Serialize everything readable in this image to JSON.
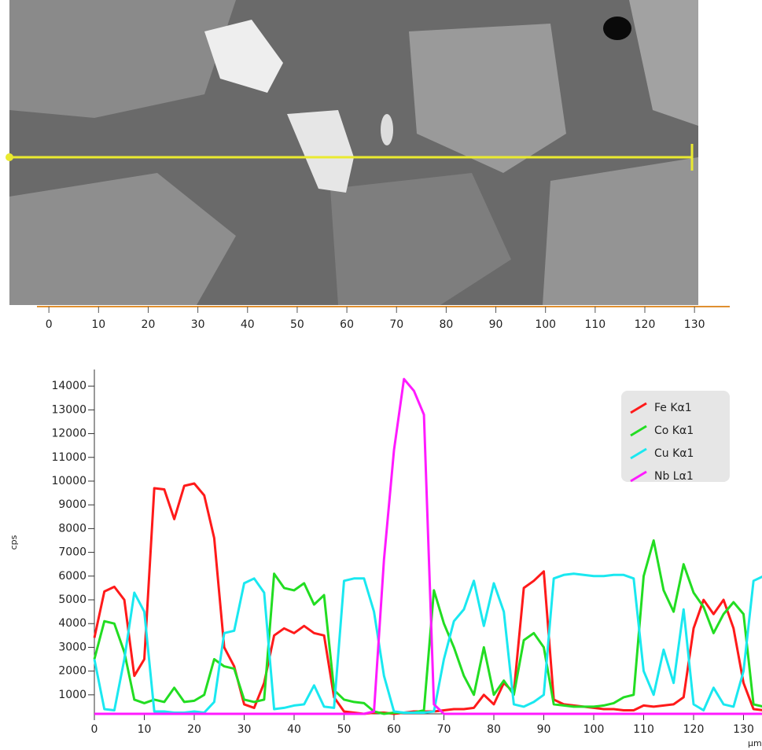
{
  "image_ruler": {
    "xlim": [
      -2.4,
      137.1
    ],
    "xticks": [
      0,
      10,
      20,
      30,
      40,
      50,
      60,
      70,
      80,
      90,
      100,
      110,
      120,
      130
    ]
  },
  "chart_data": {
    "type": "line",
    "y_label": "cps",
    "x_label": "µm",
    "x": [
      0,
      2,
      4,
      6,
      8,
      10,
      12,
      14,
      16,
      18,
      20,
      22,
      24,
      26,
      28,
      30,
      32,
      34,
      36,
      38,
      40,
      42,
      44,
      46,
      48,
      50,
      52,
      54,
      56,
      58,
      60,
      62,
      64,
      66,
      68,
      70,
      72,
      74,
      76,
      78,
      80,
      82,
      84,
      86,
      88,
      90,
      92,
      94,
      96,
      98,
      100,
      102,
      104,
      106,
      108,
      110,
      112,
      114,
      116,
      118,
      120,
      122,
      124,
      126,
      128,
      130,
      132,
      134
    ],
    "xlim": [
      0,
      133.7
    ],
    "xticks": [
      0,
      10,
      20,
      30,
      40,
      50,
      60,
      70,
      80,
      90,
      100,
      110,
      120,
      130
    ],
    "ylim": [
      200,
      14700
    ],
    "yticks": [
      1000,
      2000,
      3000,
      4000,
      5000,
      6000,
      7000,
      8000,
      9000,
      10000,
      11000,
      12000,
      13000,
      14000
    ],
    "legend": "upper right",
    "series": [
      {
        "name": "Fe Kα1",
        "color": "#ff1a1a",
        "values": [
          3400,
          5350,
          5550,
          5000,
          1800,
          2500,
          9700,
          9650,
          8400,
          9800,
          9900,
          9400,
          7600,
          3000,
          2200,
          600,
          450,
          1500,
          3500,
          3800,
          3600,
          3900,
          3600,
          3500,
          900,
          300,
          250,
          200,
          250,
          250,
          200,
          250,
          300,
          300,
          300,
          350,
          400,
          400,
          450,
          1000,
          600,
          1500,
          1100,
          5500,
          5800,
          6200,
          800,
          600,
          550,
          500,
          450,
          400,
          400,
          350,
          350,
          550,
          500,
          550,
          600,
          900,
          3800,
          5000,
          4400,
          5000,
          3800,
          1500,
          400,
          350
        ]
      },
      {
        "name": "Co Kα1",
        "color": "#22dd22",
        "values": [
          2500,
          4100,
          4000,
          2800,
          800,
          650,
          800,
          700,
          1300,
          700,
          750,
          1000,
          2500,
          2200,
          2100,
          800,
          700,
          800,
          6100,
          5500,
          5400,
          5700,
          4800,
          5200,
          1200,
          800,
          700,
          650,
          300,
          200,
          250,
          250,
          250,
          350,
          5400,
          4000,
          3000,
          1800,
          1000,
          3000,
          1000,
          1600,
          1000,
          3300,
          3600,
          3000,
          600,
          550,
          500,
          500,
          500,
          550,
          650,
          900,
          1000,
          6000,
          7500,
          5400,
          4500,
          6500,
          5300,
          4700,
          3600,
          4400,
          4900,
          4400,
          600,
          500
        ]
      },
      {
        "name": "Cu Kα1",
        "color": "#1ae8f0",
        "values": [
          2500,
          400,
          350,
          2500,
          5300,
          4500,
          300,
          300,
          250,
          250,
          300,
          250,
          700,
          3600,
          3700,
          5700,
          5900,
          5300,
          400,
          450,
          550,
          600,
          1400,
          500,
          450,
          5800,
          5900,
          5900,
          4500,
          1800,
          300,
          250,
          250,
          250,
          300,
          2500,
          4100,
          4600,
          5800,
          3900,
          5700,
          4500,
          600,
          500,
          700,
          1000,
          5900,
          6050,
          6100,
          6050,
          6000,
          6000,
          6050,
          6050,
          5900,
          2000,
          1000,
          2900,
          1500,
          4600,
          600,
          350,
          1300,
          600,
          500,
          2000,
          5800,
          6000
        ]
      },
      {
        "name": "Nb Lα1",
        "color": "#ff1aff",
        "values": [
          200,
          200,
          200,
          200,
          200,
          200,
          200,
          200,
          200,
          200,
          200,
          200,
          200,
          200,
          200,
          200,
          200,
          200,
          200,
          200,
          200,
          200,
          200,
          200,
          200,
          200,
          200,
          200,
          300,
          6700,
          11300,
          14300,
          13800,
          12800,
          600,
          200,
          200,
          200,
          200,
          200,
          200,
          200,
          200,
          200,
          200,
          200,
          200,
          200,
          200,
          200,
          200,
          200,
          200,
          200,
          200,
          200,
          200,
          200,
          200,
          200,
          200,
          200,
          200,
          200,
          200,
          200,
          200,
          200
        ]
      }
    ]
  }
}
